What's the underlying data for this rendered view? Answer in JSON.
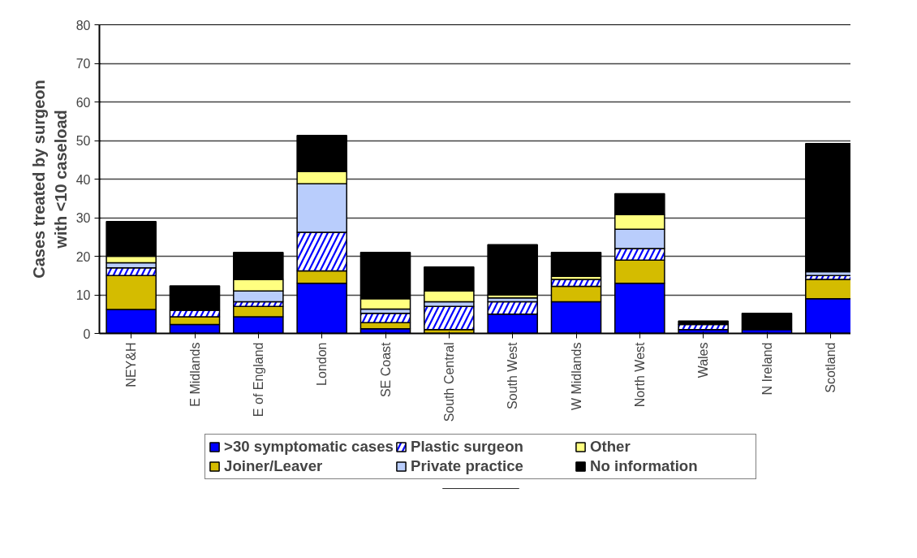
{
  "chart_data": {
    "type": "bar",
    "stacked": true,
    "ylabel": "Cases treated by surgeon\nwith <10 caseload",
    "categories": [
      "NEY&H",
      "E Midlands",
      "E of England",
      "London",
      "SE Coast",
      "South Central",
      "South West",
      "W Midlands",
      "North West",
      "Wales",
      "N Ireland",
      "Scotland"
    ],
    "series": [
      {
        "name": ">30 symptomatic cases",
        "color": "#0000ff",
        "values": [
          6.2,
          2.3,
          4.3,
          13,
          1.2,
          null,
          5,
          8.2,
          13,
          1,
          1,
          9
        ]
      },
      {
        "name": "Joiner/Leaver",
        "color": "#d4bc00",
        "values": [
          8.8,
          2,
          2.7,
          3.2,
          1.6,
          1,
          null,
          4,
          6,
          null,
          null,
          5
        ]
      },
      {
        "name": "Plastic surgeon",
        "color": "#0000ff",
        "values": [
          2,
          1.7,
          1.2,
          10,
          2.4,
          6,
          3.2,
          1.8,
          3,
          1.3,
          null,
          1
        ]
      },
      {
        "name": "Private practice",
        "color": "#b9cdfc",
        "values": [
          1.3,
          null,
          2.8,
          12.6,
          1.1,
          1.2,
          1,
          null,
          5,
          null,
          null,
          1
        ]
      },
      {
        "name": "Other",
        "color": "#ffff80",
        "values": [
          1.7,
          null,
          3,
          3.2,
          2.7,
          2.8,
          0.8,
          0.8,
          3.8,
          null,
          null,
          null
        ]
      },
      {
        "name": "No information",
        "color": "#000000",
        "values": [
          9,
          6.3,
          7,
          9.3,
          12,
          6.2,
          13,
          6.2,
          5.4,
          0.9,
          4.2,
          33.2
        ]
      }
    ],
    "ylim": [
      0,
      80
    ],
    "yticks": [
      0,
      10,
      20,
      30,
      40,
      50,
      60,
      70,
      80
    ],
    "grid": "y",
    "legend": "bottom"
  }
}
